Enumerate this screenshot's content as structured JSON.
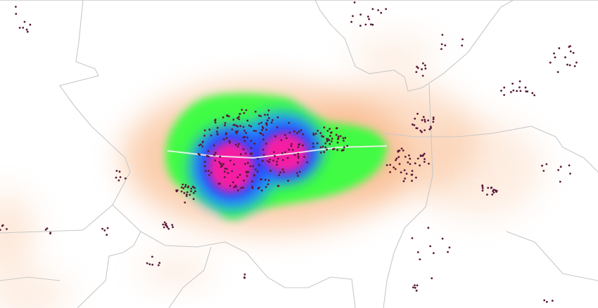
{
  "map": {
    "style": "heatmap-with-point-markers",
    "basemap": "county-boundaries",
    "colors": {
      "background": "#ffffff",
      "boundary": "#c8c8c8",
      "road": "#f2f2f2",
      "point": "#5a1a3a",
      "heat_low": "#f7a56a",
      "heat_mid": "#39ff3f",
      "heat_mid2": "#1aa6ff",
      "heat_high": "#2f3dff",
      "heat_peak": "#ff1aa0",
      "heat_core": "#ff00a8"
    },
    "legend": null
  }
}
